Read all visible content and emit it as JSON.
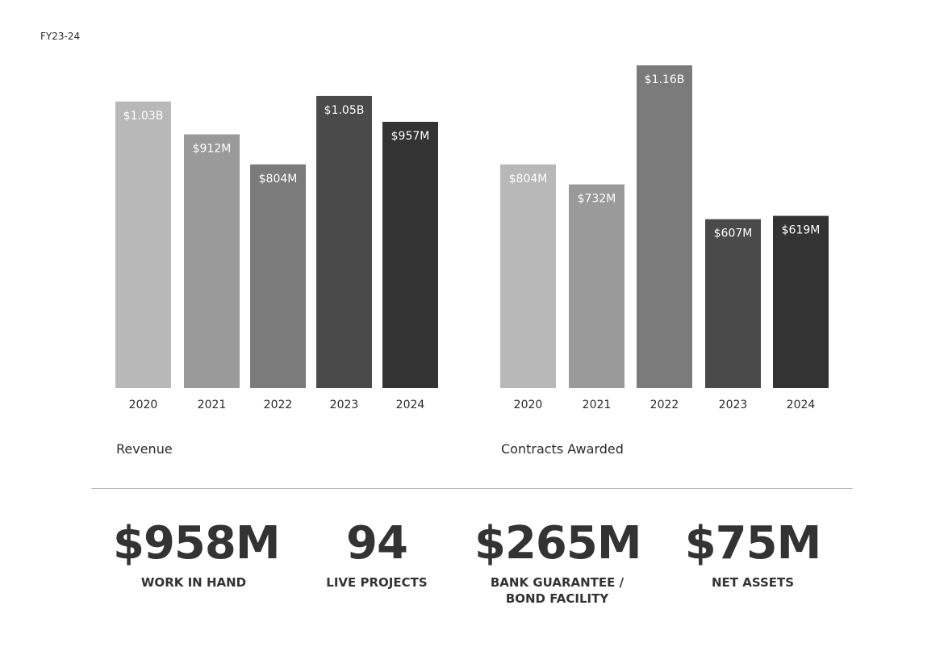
{
  "header": {
    "period": "FY23-24"
  },
  "chart_data": [
    {
      "type": "bar",
      "title": "Revenue",
      "categories": [
        "2020",
        "2021",
        "2022",
        "2023",
        "2024"
      ],
      "values": [
        1030,
        912,
        804,
        1050,
        957
      ],
      "value_labels": [
        "$1.03B",
        "$912M",
        "$804M",
        "$1.05B",
        "$957M"
      ],
      "unit": "$M",
      "ylim": [
        0,
        1200
      ],
      "grid": false,
      "colors": [
        "#b8b8b8",
        "#9a9a9a",
        "#7b7b7b",
        "#4a4a4a",
        "#333333"
      ]
    },
    {
      "type": "bar",
      "title": "Contracts Awarded",
      "categories": [
        "2020",
        "2021",
        "2022",
        "2023",
        "2024"
      ],
      "values": [
        804,
        732,
        1160,
        607,
        619
      ],
      "value_labels": [
        "$804M",
        "$732M",
        "$1.16B",
        "$607M",
        "$619M"
      ],
      "unit": "$M",
      "ylim": [
        0,
        1200
      ],
      "grid": false,
      "colors": [
        "#b8b8b8",
        "#9a9a9a",
        "#7b7b7b",
        "#4a4a4a",
        "#333333"
      ]
    }
  ],
  "stats": [
    {
      "value": "$958M",
      "label": "WORK IN HAND"
    },
    {
      "value": "94",
      "label": "LIVE PROJECTS"
    },
    {
      "value": "$265M",
      "label": "BANK GUARANTEE /\nBOND FACILITY"
    },
    {
      "value": "$75M",
      "label": "NET ASSETS"
    }
  ]
}
